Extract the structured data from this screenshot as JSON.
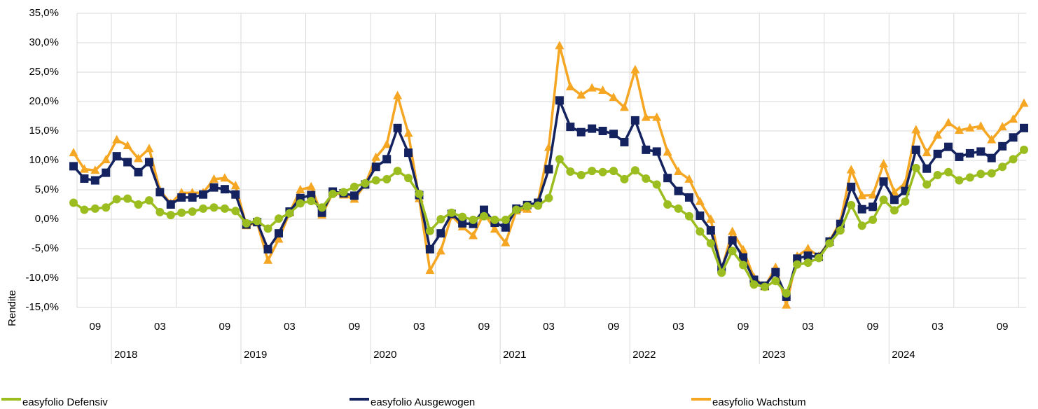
{
  "chart_data": {
    "type": "line",
    "y_label": "Rendite",
    "categories": [
      null,
      null,
      "09",
      null,
      null,
      null,
      null,
      null,
      "03",
      null,
      null,
      null,
      null,
      null,
      "09",
      null,
      null,
      null,
      null,
      null,
      "03",
      null,
      null,
      null,
      null,
      null,
      "09",
      null,
      null,
      null,
      null,
      null,
      "03",
      null,
      null,
      null,
      null,
      null,
      "09",
      null,
      null,
      null,
      null,
      null,
      "03",
      null,
      null,
      null,
      null,
      null,
      "09",
      null,
      null,
      null,
      null,
      null,
      "03",
      null,
      null,
      null,
      null,
      null,
      "09",
      null,
      null,
      null,
      null,
      null,
      "03",
      null,
      null,
      null,
      null,
      null,
      "09",
      null,
      null,
      null,
      null,
      null,
      "03",
      null,
      null,
      null,
      null,
      null,
      "09",
      null,
      null
    ],
    "year_labels": [
      "2018",
      "2019",
      "2020",
      "2021",
      "2022",
      "2023",
      "2024"
    ],
    "ylim": [
      -15,
      35
    ],
    "yticks": [
      {
        "value": 35,
        "label": "35,0%"
      },
      {
        "value": 30,
        "label": "30,0%"
      },
      {
        "value": 25,
        "label": "25,0%"
      },
      {
        "value": 20,
        "label": "20,0%"
      },
      {
        "value": 15,
        "label": "15,0%"
      },
      {
        "value": 10,
        "label": "10,0%"
      },
      {
        "value": 5,
        "label": "5,0%"
      },
      {
        "value": 0,
        "label": "0,0%"
      },
      {
        "value": -5,
        "label": "-5,0%"
      },
      {
        "value": -10,
        "label": "-10,0%"
      },
      {
        "value": -15,
        "label": "-15,0%"
      }
    ],
    "grid": true,
    "legend": "bottom",
    "series": [
      {
        "name": "easyfolio Defensiv",
        "color": "#9cbd1f",
        "marker": "circle",
        "values": [
          2.8,
          1.6,
          1.8,
          2.0,
          3.4,
          3.5,
          2.5,
          3.2,
          1.2,
          0.7,
          1.1,
          1.3,
          1.8,
          2.0,
          1.8,
          1.4,
          -0.7,
          -0.3,
          -1.6,
          0.1,
          1.0,
          2.7,
          3.1,
          2.0,
          4.3,
          4.6,
          5.5,
          6.1,
          6.6,
          6.8,
          8.2,
          7.0,
          4.3,
          -2.0,
          0.0,
          1.1,
          0.4,
          -0.1,
          0.5,
          -0.1,
          -0.1,
          1.6,
          2.2,
          2.3,
          3.6,
          10.2,
          8.1,
          7.5,
          8.2,
          8.0,
          8.2,
          6.8,
          8.3,
          6.9,
          5.9,
          2.5,
          1.8,
          0.5,
          -2.1,
          -4.1,
          -9.1,
          -5.4,
          -7.8,
          -11.1,
          -11.5,
          -10.5,
          -12.6,
          -7.7,
          -7.4,
          -6.6,
          -4.1,
          -1.9,
          2.4,
          -1.1,
          -0.1,
          3.3,
          1.5,
          3.0,
          8.7,
          5.9,
          7.5,
          8.0,
          6.6,
          7.1,
          7.7,
          7.8,
          8.9,
          10.2,
          11.8
        ]
      },
      {
        "name": "easyfolio Ausgewogen",
        "color": "#14235f",
        "marker": "square",
        "values": [
          9.0,
          6.9,
          6.6,
          7.9,
          10.7,
          9.7,
          8.0,
          9.7,
          4.6,
          2.5,
          3.7,
          3.7,
          4.2,
          5.4,
          5.1,
          4.2,
          -0.9,
          -0.5,
          -5.1,
          -2.4,
          1.3,
          3.6,
          4.1,
          1.1,
          4.7,
          4.4,
          4.0,
          5.9,
          8.9,
          10.2,
          15.5,
          11.3,
          4.1,
          -5.1,
          -2.4,
          0.9,
          -0.7,
          -0.8,
          1.6,
          -0.6,
          -1.4,
          1.8,
          2.4,
          2.8,
          8.5,
          20.2,
          15.7,
          14.8,
          15.4,
          15.0,
          14.5,
          13.1,
          16.8,
          11.8,
          11.5,
          7.0,
          4.8,
          3.7,
          0.6,
          -1.9,
          -8.3,
          -3.6,
          -6.5,
          -10.3,
          -11.3,
          -9.0,
          -13.2,
          -6.7,
          -6.2,
          -6.4,
          -3.8,
          -0.8,
          5.5,
          1.7,
          2.1,
          6.4,
          3.3,
          4.8,
          11.8,
          8.6,
          11.1,
          12.3,
          10.6,
          11.2,
          11.5,
          10.4,
          12.4,
          13.9,
          15.5
        ]
      },
      {
        "name": "easyfolio Wachstum",
        "color": "#f5a623",
        "marker": "triangle",
        "values": [
          11.3,
          8.5,
          8.3,
          10.1,
          13.5,
          12.5,
          10.3,
          12.0,
          4.9,
          2.7,
          4.5,
          4.5,
          4.5,
          6.8,
          7.0,
          5.7,
          -1.1,
          -0.6,
          -7.0,
          -3.4,
          1.1,
          5.0,
          5.5,
          0.7,
          4.5,
          4.1,
          3.4,
          5.9,
          10.5,
          12.7,
          21.0,
          14.6,
          3.5,
          -8.7,
          -5.4,
          0.6,
          -1.3,
          -2.8,
          1.0,
          -1.7,
          -4.0,
          1.4,
          1.7,
          3.0,
          12.2,
          29.5,
          22.5,
          21.1,
          22.3,
          21.9,
          20.7,
          19.0,
          25.4,
          17.3,
          17.3,
          11.4,
          8.1,
          6.8,
          3.0,
          0.0,
          -8.6,
          -2.1,
          -5.2,
          -9.9,
          -11.5,
          -8.2,
          -14.6,
          -6.3,
          -5.0,
          -6.3,
          -3.7,
          -0.4,
          8.4,
          4.0,
          4.1,
          9.4,
          4.6,
          6.1,
          15.2,
          11.3,
          14.3,
          16.4,
          15.1,
          15.5,
          15.8,
          13.5,
          15.7,
          17.0,
          19.7
        ]
      }
    ]
  }
}
